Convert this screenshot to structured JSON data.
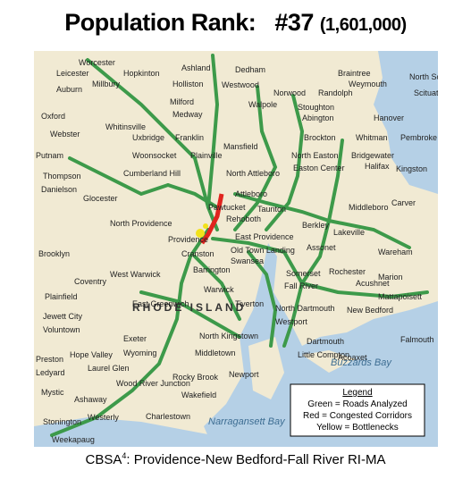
{
  "header": {
    "title": "Population Rank:",
    "rank": "#37",
    "population": "(1,601,000)"
  },
  "map": {
    "region": "RHODE ISLAND",
    "bays": [
      "Narragansett Bay",
      "Buzzards Bay"
    ],
    "places": [
      "Worcester",
      "Leicester",
      "Hopkinton",
      "Ashland",
      "Dedham",
      "Braintree",
      "North Scituate",
      "Auburn",
      "Millbury",
      "Holliston",
      "Westwood",
      "Norwood",
      "Randolph",
      "Weymouth",
      "Scituate",
      "Oxford",
      "Milford",
      "Medway",
      "Walpole",
      "Stoughton",
      "Abington",
      "Hanover",
      "Webster",
      "Whitinsville",
      "Uxbridge",
      "Franklin",
      "Mansfield",
      "Brockton",
      "Whitman",
      "Pembroke",
      "Putnam",
      "Woonsocket",
      "Plainville",
      "North Easton",
      "Bridgewater",
      "Kingston",
      "Thompson",
      "Cumberland Hill",
      "North Attleboro",
      "Easton Center",
      "Halifax",
      "Danielson",
      "Glocester",
      "Attleboro",
      "Taunton",
      "Middleboro",
      "Carver",
      "North Providence",
      "Pawtucket",
      "Rehoboth",
      "Providence",
      "East Providence",
      "Berkley",
      "Lakeville",
      "Cranston",
      "Old Town Landing",
      "Assonet",
      "Wareham",
      "Brooklyn",
      "West Warwick",
      "Barrington",
      "Swansea",
      "Fall River",
      "Rochester",
      "Plainfield",
      "Coventry",
      "Warwick",
      "Somerset",
      "Acushnet",
      "Marion",
      "Mattapoisett",
      "Jewett City",
      "East Greenwich",
      "Tiverton",
      "North Dartmouth",
      "New Bedford",
      "Voluntown",
      "Exeter",
      "North Kingstown",
      "Westport",
      "Dartmouth",
      "Falmouth",
      "Preston",
      "Hope Valley",
      "Wyoming",
      "Middletown",
      "Little Compton",
      "Acoaxet",
      "Ledyard",
      "Laurel Glen",
      "Wood River Junction",
      "Rocky Brook",
      "Newport",
      "Mystic",
      "Ashaway",
      "Westerly",
      "Wakefield",
      "Charlestown",
      "Stonington",
      "Weekapaug"
    ]
  },
  "legend": {
    "title": "Legend",
    "items": [
      "Green = Roads Analyzed",
      "Red = Congested Corridors",
      "Yellow = Bottlenecks"
    ]
  },
  "caption": {
    "prefix": "CBSA",
    "note": "4",
    "text": ":  Providence-New Bedford-Fall River RI-MA"
  }
}
